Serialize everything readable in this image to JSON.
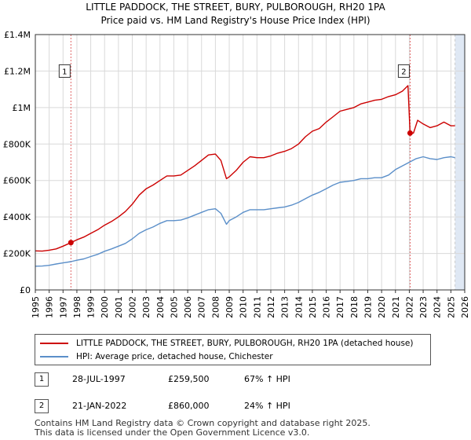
{
  "title_line1": "LITTLE PADDOCK, THE STREET, BURY, PULBOROUGH, RH20 1PA",
  "title_line2": "Price paid vs. HM Land Registry's House Price Index (HPI)",
  "legend": {
    "property_label": "LITTLE PADDOCK, THE STREET, BURY, PULBOROUGH, RH20 1PA (detached house)",
    "hpi_label": "HPI: Average price, detached house, Chichester"
  },
  "sales": [
    {
      "num": "1",
      "date": "28-JUL-1997",
      "price": "£259,500",
      "hpi": "67% ↑ HPI"
    },
    {
      "num": "2",
      "date": "21-JAN-2022",
      "price": "£860,000",
      "hpi": "24% ↑ HPI"
    }
  ],
  "footer": {
    "line1": "Contains HM Land Registry data © Crown copyright and database right 2025.",
    "line2": "This data is licensed under the Open Government Licence v3.0."
  },
  "chart_data": {
    "type": "line",
    "xlim": [
      1995,
      2026
    ],
    "ylim": [
      0,
      1400000
    ],
    "y_ticks": [
      0,
      200000,
      400000,
      600000,
      800000,
      1000000,
      1200000,
      1400000
    ],
    "y_tick_labels": [
      "£0",
      "£200K",
      "£400K",
      "£600K",
      "£800K",
      "£1M",
      "£1.2M",
      "£1.4M"
    ],
    "x_ticks": [
      1995,
      1996,
      1997,
      1998,
      1999,
      2000,
      2001,
      2002,
      2003,
      2004,
      2005,
      2006,
      2007,
      2008,
      2009,
      2010,
      2011,
      2012,
      2013,
      2014,
      2015,
      2016,
      2017,
      2018,
      2019,
      2020,
      2021,
      2022,
      2023,
      2024,
      2025,
      2026
    ],
    "x_tick_labels": [
      "1995",
      "1996",
      "1997",
      "1998",
      "1999",
      "2000",
      "2001",
      "2002",
      "2003",
      "2004",
      "2005",
      "2006",
      "2007",
      "2008",
      "2009",
      "2010",
      "2011",
      "2012",
      "2013",
      "2014",
      "2015",
      "2016",
      "2017",
      "2018",
      "2019",
      "2020",
      "2021",
      "2022",
      "2023",
      "2024",
      "2025",
      "2026"
    ],
    "data_end": 2025.3,
    "colors": {
      "property": "#cc0000",
      "hpi": "#5b8fc9",
      "shade": "#dfe8f4",
      "grid": "#d9d9d9",
      "marker_line": "#e06666"
    },
    "series": [
      {
        "name": "property",
        "points": [
          [
            1995,
            214000
          ],
          [
            1995.5,
            213000
          ],
          [
            1996,
            218000
          ],
          [
            1996.5,
            225000
          ],
          [
            1997,
            240000
          ],
          [
            1997.57,
            259500
          ],
          [
            1998,
            275000
          ],
          [
            1998.5,
            290000
          ],
          [
            1999,
            310000
          ],
          [
            1999.5,
            330000
          ],
          [
            2000,
            355000
          ],
          [
            2000.5,
            375000
          ],
          [
            2001,
            400000
          ],
          [
            2001.5,
            430000
          ],
          [
            2002,
            470000
          ],
          [
            2002.5,
            520000
          ],
          [
            2003,
            555000
          ],
          [
            2003.5,
            575000
          ],
          [
            2004,
            600000
          ],
          [
            2004.5,
            625000
          ],
          [
            2005,
            625000
          ],
          [
            2005.5,
            630000
          ],
          [
            2006,
            655000
          ],
          [
            2006.5,
            680000
          ],
          [
            2007,
            710000
          ],
          [
            2007.5,
            740000
          ],
          [
            2008,
            745000
          ],
          [
            2008.4,
            710000
          ],
          [
            2008.8,
            610000
          ],
          [
            2009,
            620000
          ],
          [
            2009.5,
            655000
          ],
          [
            2010,
            700000
          ],
          [
            2010.5,
            730000
          ],
          [
            2011,
            725000
          ],
          [
            2011.5,
            725000
          ],
          [
            2012,
            735000
          ],
          [
            2012.5,
            750000
          ],
          [
            2013,
            760000
          ],
          [
            2013.5,
            775000
          ],
          [
            2014,
            800000
          ],
          [
            2014.5,
            840000
          ],
          [
            2015,
            870000
          ],
          [
            2015.5,
            885000
          ],
          [
            2016,
            920000
          ],
          [
            2016.5,
            950000
          ],
          [
            2017,
            980000
          ],
          [
            2017.5,
            990000
          ],
          [
            2018,
            1000000
          ],
          [
            2018.5,
            1020000
          ],
          [
            2019,
            1030000
          ],
          [
            2019.5,
            1040000
          ],
          [
            2020,
            1045000
          ],
          [
            2020.5,
            1060000
          ],
          [
            2021,
            1070000
          ],
          [
            2021.5,
            1090000
          ],
          [
            2021.9,
            1120000
          ],
          [
            2022.057,
            860000
          ],
          [
            2022.3,
            860000
          ],
          [
            2022.6,
            930000
          ],
          [
            2023,
            910000
          ],
          [
            2023.5,
            890000
          ],
          [
            2024,
            900000
          ],
          [
            2024.5,
            920000
          ],
          [
            2025,
            900000
          ],
          [
            2025.3,
            900000
          ]
        ]
      },
      {
        "name": "hpi",
        "points": [
          [
            1995,
            130000
          ],
          [
            1995.5,
            131000
          ],
          [
            1996,
            135000
          ],
          [
            1996.5,
            142000
          ],
          [
            1997,
            148000
          ],
          [
            1997.57,
            155000
          ],
          [
            1998,
            163000
          ],
          [
            1998.5,
            170000
          ],
          [
            1999,
            183000
          ],
          [
            1999.5,
            195000
          ],
          [
            2000,
            212000
          ],
          [
            2000.5,
            225000
          ],
          [
            2001,
            240000
          ],
          [
            2001.5,
            255000
          ],
          [
            2002,
            280000
          ],
          [
            2002.5,
            310000
          ],
          [
            2003,
            330000
          ],
          [
            2003.5,
            345000
          ],
          [
            2004,
            365000
          ],
          [
            2004.5,
            380000
          ],
          [
            2005,
            380000
          ],
          [
            2005.5,
            383000
          ],
          [
            2006,
            395000
          ],
          [
            2006.5,
            410000
          ],
          [
            2007,
            425000
          ],
          [
            2007.5,
            440000
          ],
          [
            2008,
            445000
          ],
          [
            2008.4,
            420000
          ],
          [
            2008.8,
            360000
          ],
          [
            2009,
            380000
          ],
          [
            2009.5,
            400000
          ],
          [
            2010,
            425000
          ],
          [
            2010.5,
            440000
          ],
          [
            2011,
            440000
          ],
          [
            2011.5,
            440000
          ],
          [
            2012,
            445000
          ],
          [
            2012.5,
            450000
          ],
          [
            2013,
            455000
          ],
          [
            2013.5,
            465000
          ],
          [
            2014,
            480000
          ],
          [
            2014.5,
            500000
          ],
          [
            2015,
            520000
          ],
          [
            2015.5,
            535000
          ],
          [
            2016,
            555000
          ],
          [
            2016.5,
            575000
          ],
          [
            2017,
            590000
          ],
          [
            2017.5,
            595000
          ],
          [
            2018,
            600000
          ],
          [
            2018.5,
            610000
          ],
          [
            2019,
            610000
          ],
          [
            2019.5,
            615000
          ],
          [
            2020,
            615000
          ],
          [
            2020.5,
            630000
          ],
          [
            2021,
            660000
          ],
          [
            2021.5,
            680000
          ],
          [
            2022,
            700000
          ],
          [
            2022.5,
            720000
          ],
          [
            2023,
            730000
          ],
          [
            2023.5,
            720000
          ],
          [
            2024,
            715000
          ],
          [
            2024.5,
            725000
          ],
          [
            2025,
            730000
          ],
          [
            2025.3,
            725000
          ]
        ]
      }
    ],
    "markers": [
      {
        "label": "1",
        "x": 1997.57,
        "y": 259500
      },
      {
        "label": "2",
        "x": 2022.057,
        "y": 860000
      }
    ]
  }
}
